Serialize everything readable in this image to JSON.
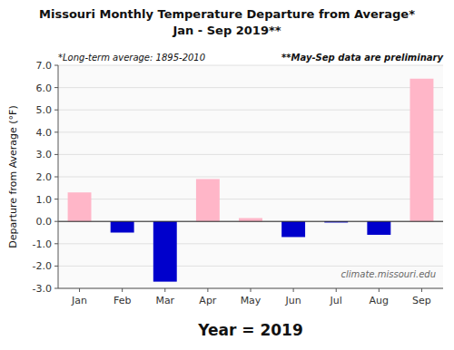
{
  "chart_data": {
    "type": "bar",
    "title": "Missouri Monthly Temperature Departure from Average*",
    "subtitle": "Jan - Sep 2019**",
    "x_label": "Year = 2019",
    "y_label": "Departure from Average (°F)",
    "categories": [
      "Jan",
      "Feb",
      "Mar",
      "Apr",
      "May",
      "Jun",
      "Jul",
      "Aug",
      "Sep"
    ],
    "values": [
      1.3,
      -0.5,
      -2.7,
      1.9,
      0.15,
      -0.7,
      -0.05,
      -0.6,
      6.4
    ],
    "colors": [
      "#FFB6C8",
      "#0000CC",
      "#0000CC",
      "#FFB6C8",
      "#FFB6C8",
      "#0000CC",
      "#0000CC",
      "#0000CC",
      "#FFB6C8"
    ],
    "ylim": [
      -3.0,
      7.0
    ],
    "yticks": [
      {
        "value": -3.0,
        "label": "-3.0"
      },
      {
        "value": -2.0,
        "label": "-2.0"
      },
      {
        "value": -1.0,
        "label": "-1.0"
      },
      {
        "value": 0.0,
        "label": "0.0"
      },
      {
        "value": 1.0,
        "label": "1.0"
      },
      {
        "value": 2.0,
        "label": "2.0"
      },
      {
        "value": 3.0,
        "label": "3.0"
      },
      {
        "value": 4.0,
        "label": "4.0"
      },
      {
        "value": 5.0,
        "label": "5.0"
      },
      {
        "value": 6.0,
        "label": "6.0"
      },
      {
        "value": 7.0,
        "label": "7.0"
      }
    ],
    "grid": true,
    "annotations": [
      "*Long-term average: 1895-2010",
      "**May-Sep data are preliminary",
      "climate.missouri.edu"
    ]
  }
}
